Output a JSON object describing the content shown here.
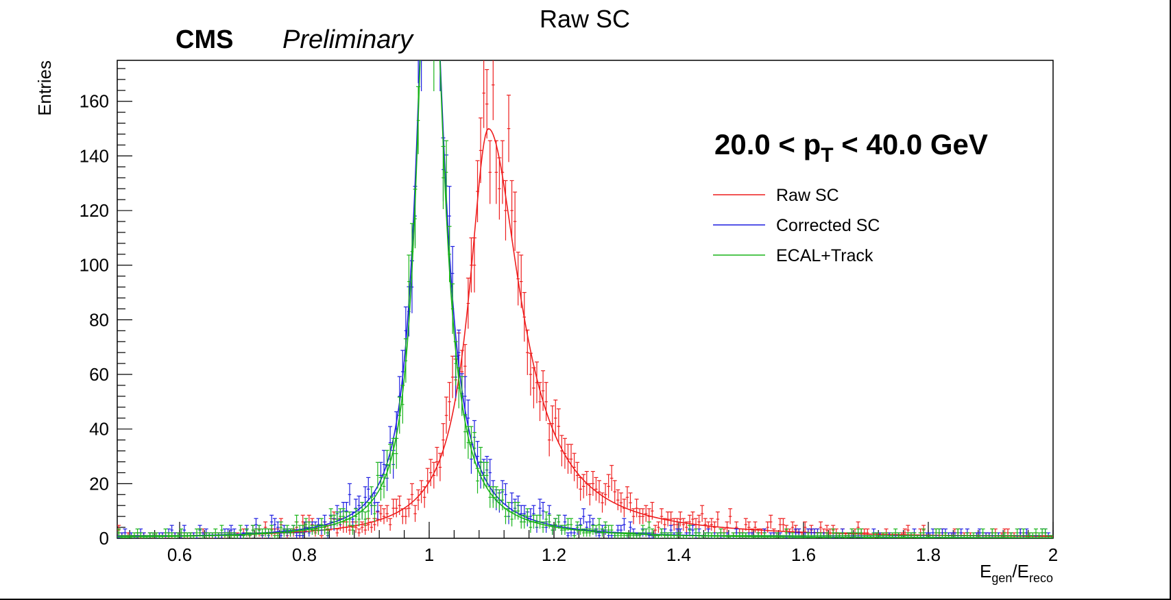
{
  "chart_data": {
    "type": "line",
    "title": "Raw SC",
    "experiment_label": "CMS",
    "status_label": "Preliminary",
    "pt_range_label": {
      "prefix": "20.0 < p",
      "sub": "T",
      "suffix": " < 40.0 GeV"
    },
    "xlabel": {
      "E": "E",
      "gen": "gen",
      "slash": "/E",
      "reco": "reco"
    },
    "ylabel": "Entries",
    "xlim": [
      0.5,
      2.0
    ],
    "ylim": [
      0,
      175
    ],
    "x_ticks": [
      0.6,
      0.8,
      1.0,
      1.2,
      1.4,
      1.6,
      1.8,
      2.0
    ],
    "x_tick_labels": [
      "0.6",
      "0.8",
      "1",
      "1.2",
      "1.4",
      "1.6",
      "1.8",
      "2"
    ],
    "y_ticks": [
      0,
      20,
      40,
      60,
      80,
      100,
      120,
      140,
      160
    ],
    "y_tick_labels": [
      "0",
      "20",
      "40",
      "60",
      "80",
      "100",
      "120",
      "140",
      "160"
    ],
    "bin_width": 0.005,
    "legend_position": "top-right",
    "series": [
      {
        "name": "Raw SC",
        "color": "#ee1c1c",
        "peak": 1.095,
        "amplitude": 150,
        "gamma_left": 0.038,
        "gamma_right": 0.062
      },
      {
        "name": "Corrected SC",
        "color": "#1c1ce0",
        "peak": 1.0,
        "amplitude": 245,
        "gamma_left": 0.024,
        "gamma_right": 0.028
      },
      {
        "name": "ECAL+Track",
        "color": "#18b418",
        "peak": 1.0,
        "amplitude": 252,
        "gamma_left": 0.022,
        "gamma_right": 0.026
      }
    ]
  }
}
